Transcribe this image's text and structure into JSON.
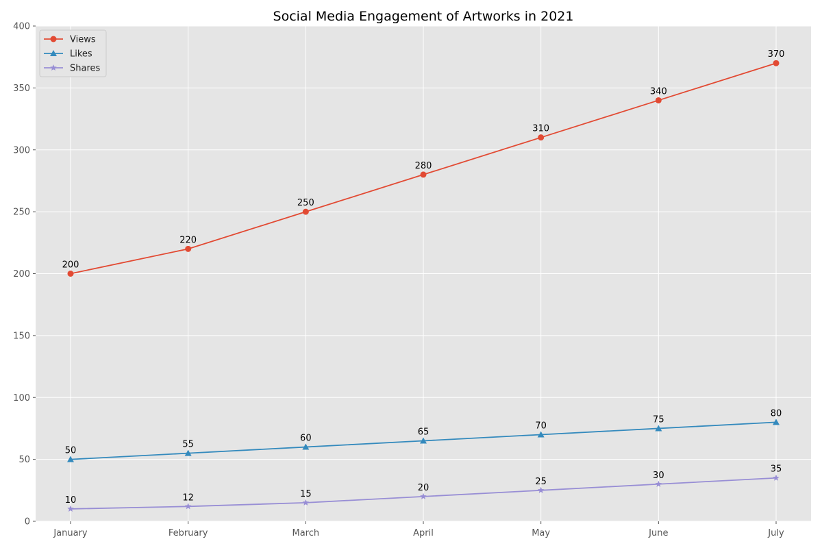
{
  "chart_data": {
    "type": "line",
    "title": "Social Media Engagement of Artworks in 2021",
    "xlabel": "",
    "ylabel": "",
    "categories": [
      "January",
      "February",
      "March",
      "April",
      "May",
      "June",
      "July"
    ],
    "series": [
      {
        "name": "Views",
        "values": [
          200,
          220,
          250,
          280,
          310,
          340,
          370
        ],
        "color": "#E24A33",
        "marker": "circle"
      },
      {
        "name": "Likes",
        "values": [
          50,
          55,
          60,
          65,
          70,
          75,
          80
        ],
        "color": "#348ABD",
        "marker": "triangle"
      },
      {
        "name": "Shares",
        "values": [
          10,
          12,
          15,
          20,
          25,
          30,
          35
        ],
        "color": "#988ED5",
        "marker": "star"
      }
    ],
    "ylim": [
      0,
      400
    ],
    "yticks": [
      0,
      50,
      100,
      150,
      200,
      250,
      300,
      350,
      400
    ],
    "grid": true,
    "legend_position": "top-left",
    "background_color": "#E5E5E5"
  }
}
